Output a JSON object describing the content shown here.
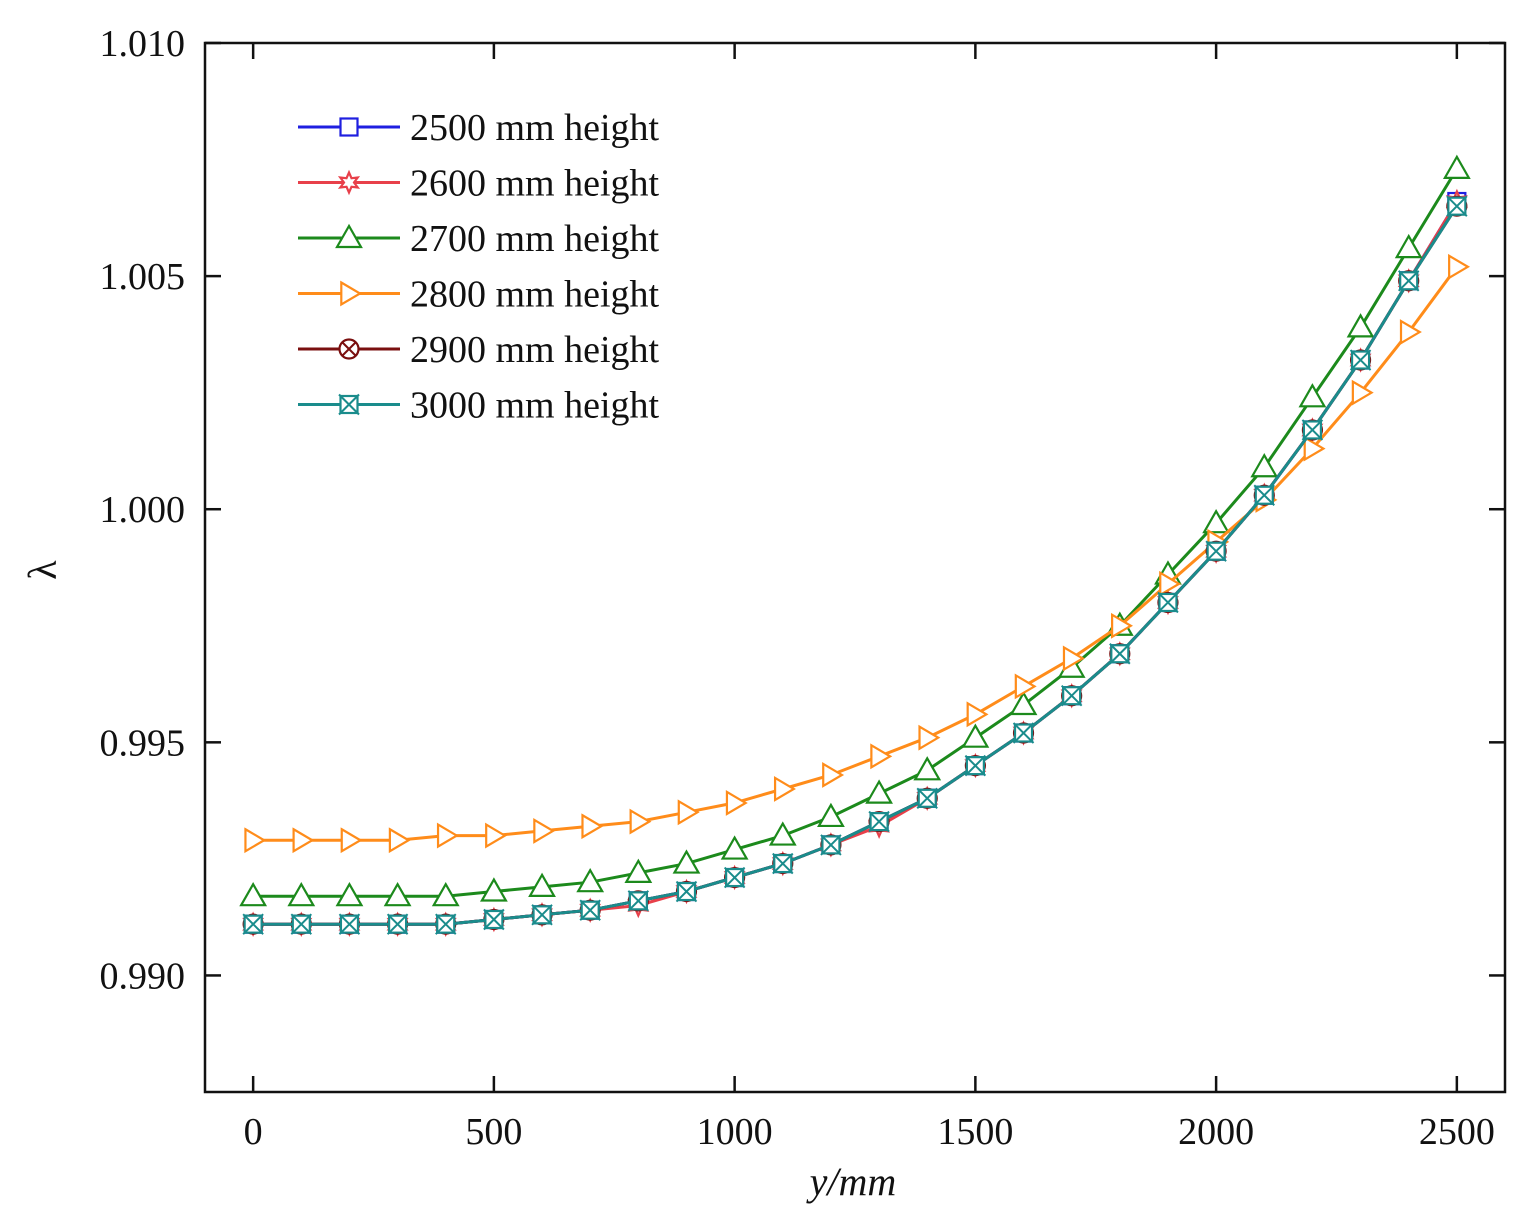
{
  "chart_data": {
    "type": "line",
    "xlabel": "y/mm",
    "ylabel": "λ",
    "xlim": [
      -100,
      2600
    ],
    "ylim": [
      0.9875,
      1.01
    ],
    "x_ticks": [
      0,
      500,
      1000,
      1500,
      2000,
      2500
    ],
    "x_tick_labels": [
      "0",
      "500",
      "1000",
      "1500",
      "2000",
      "2500"
    ],
    "y_ticks": [
      0.99,
      0.995,
      1.0,
      1.005,
      1.01
    ],
    "y_tick_labels": [
      "0.990",
      "0.995",
      "1.000",
      "1.005",
      "1.010"
    ],
    "grid": false,
    "legend_position": "top-left",
    "x": [
      0,
      100,
      200,
      300,
      400,
      500,
      600,
      700,
      800,
      900,
      1000,
      1100,
      1200,
      1300,
      1400,
      1500,
      1600,
      1700,
      1800,
      1900,
      2000,
      2100,
      2200,
      2300,
      2400,
      2500
    ],
    "series": [
      {
        "name": "2500 mm height",
        "color": "#1f1fe0",
        "marker": "square",
        "values": [
          0.9911,
          0.9911,
          0.9911,
          0.9911,
          0.9911,
          0.9912,
          0.9913,
          0.9914,
          0.9916,
          0.9918,
          0.9921,
          0.9924,
          0.9928,
          0.9933,
          0.9938,
          0.9945,
          0.9952,
          0.996,
          0.9969,
          0.998,
          0.9991,
          1.0003,
          1.0017,
          1.0032,
          1.0049,
          1.0066
        ]
      },
      {
        "name": "2600 mm height",
        "color": "#e8404a",
        "marker": "star",
        "values": [
          0.9911,
          0.9911,
          0.9911,
          0.9911,
          0.9911,
          0.9912,
          0.9913,
          0.9914,
          0.9915,
          0.9918,
          0.9921,
          0.9924,
          0.9928,
          0.9932,
          0.9938,
          0.9945,
          0.9952,
          0.996,
          0.9969,
          0.998,
          0.9991,
          1.0003,
          1.0017,
          1.0032,
          1.0049,
          1.0066
        ]
      },
      {
        "name": "2700 mm height",
        "color": "#1c8a1c",
        "marker": "triangle",
        "values": [
          0.9917,
          0.9917,
          0.9917,
          0.9917,
          0.9917,
          0.9918,
          0.9919,
          0.992,
          0.9922,
          0.9924,
          0.9927,
          0.993,
          0.9934,
          0.9939,
          0.9944,
          0.9951,
          0.9958,
          0.9966,
          0.9975,
          0.9986,
          0.9997,
          1.0009,
          1.0024,
          1.0039,
          1.0056,
          1.0073
        ]
      },
      {
        "name": "2800 mm height",
        "color": "#ff8c1a",
        "marker": "triangle-right",
        "values": [
          0.9929,
          0.9929,
          0.9929,
          0.9929,
          0.993,
          0.993,
          0.9931,
          0.9932,
          0.9933,
          0.9935,
          0.9937,
          0.994,
          0.9943,
          0.9947,
          0.9951,
          0.9956,
          0.9962,
          0.9968,
          0.9975,
          0.9984,
          0.9993,
          1.0002,
          1.0013,
          1.0025,
          1.0038,
          1.0052
        ]
      },
      {
        "name": "2900 mm height",
        "color": "#7a0f0f",
        "marker": "circle-x",
        "values": [
          0.9911,
          0.9911,
          0.9911,
          0.9911,
          0.9911,
          0.9912,
          0.9913,
          0.9914,
          0.9916,
          0.9918,
          0.9921,
          0.9924,
          0.9928,
          0.9933,
          0.9938,
          0.9945,
          0.9952,
          0.996,
          0.9969,
          0.998,
          0.9991,
          1.0003,
          1.0017,
          1.0032,
          1.0049,
          1.0065
        ]
      },
      {
        "name": "3000 mm height",
        "color": "#1a8c8c",
        "marker": "square-x",
        "values": [
          0.9911,
          0.9911,
          0.9911,
          0.9911,
          0.9911,
          0.9912,
          0.9913,
          0.9914,
          0.9916,
          0.9918,
          0.9921,
          0.9924,
          0.9928,
          0.9933,
          0.9938,
          0.9945,
          0.9952,
          0.996,
          0.9969,
          0.998,
          0.9991,
          1.0003,
          1.0017,
          1.0032,
          1.0049,
          1.0065
        ]
      }
    ]
  }
}
